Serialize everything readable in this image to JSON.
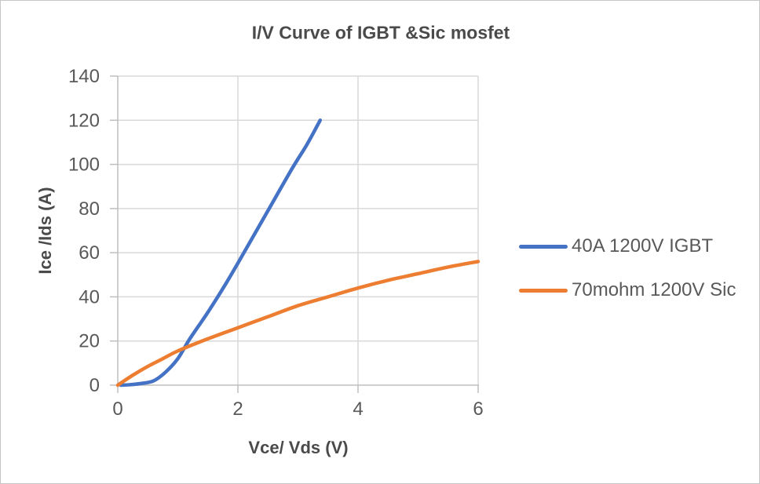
{
  "chart_data": {
    "type": "line",
    "title": "I/V Curve of IGBT &Sic mosfet",
    "xlabel": "Vce/ Vds (V)",
    "ylabel": "Ice /Ids (A)",
    "xlim": [
      0,
      6
    ],
    "ylim": [
      0,
      140
    ],
    "xticks": [
      0,
      2,
      4,
      6
    ],
    "yticks": [
      0,
      20,
      40,
      60,
      80,
      100,
      120,
      140
    ],
    "grid": true,
    "legend_position": "right-center",
    "series": [
      {
        "name": "40A 1200V IGBT",
        "color": "#4472C4",
        "x": [
          0.05,
          0.2,
          0.4,
          0.6,
          0.8,
          1.0,
          1.2,
          1.5,
          1.8,
          2.1,
          2.5,
          2.9,
          3.15,
          3.37
        ],
        "y": [
          0,
          0.2,
          0.8,
          2,
          6,
          12,
          21,
          33,
          46,
          60,
          79,
          98,
          109,
          120
        ]
      },
      {
        "name": "70mohm 1200V Sic",
        "color": "#ED7D31",
        "x": [
          0,
          0.25,
          0.5,
          0.75,
          1.0,
          1.5,
          2.0,
          2.5,
          3.0,
          3.5,
          4.0,
          4.5,
          5.0,
          5.5,
          6.0
        ],
        "y": [
          0,
          4.5,
          8.5,
          12,
          15.5,
          21,
          26,
          31,
          36,
          40,
          44,
          47.5,
          50.5,
          53.5,
          56
        ]
      }
    ]
  },
  "styles": {
    "grid_color": "#D9D9D9",
    "axis_color": "#BFBFBF",
    "tick_text_color": "#595959",
    "title_text_color": "#4A4A4A",
    "background": "#FFFFFF"
  }
}
